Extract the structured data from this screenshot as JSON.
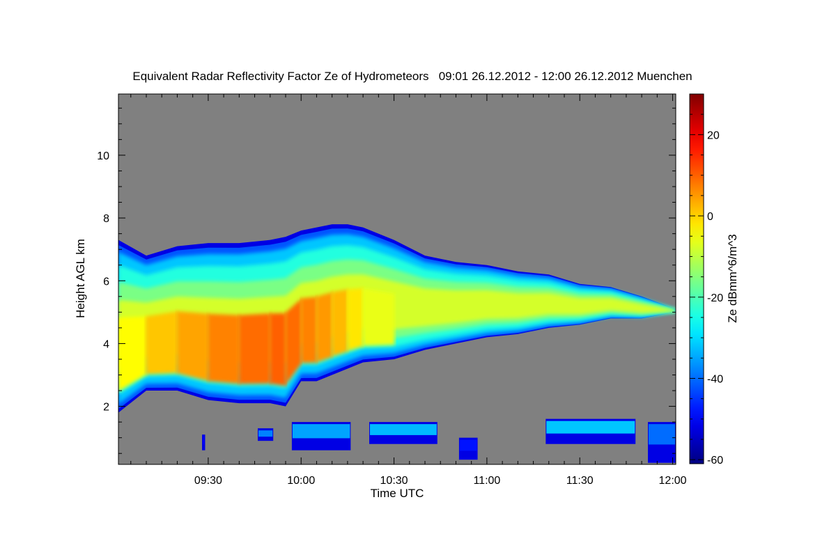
{
  "chart_data": {
    "type": "heatmap",
    "title": "Equivalent Radar Reflectivity Factor Ze of Hydrometeors   09:01 26.12.2012 - 12:00 26.12.2012 Muenchen",
    "xlabel": "Time UTC",
    "ylabel": "Height AGL km",
    "x_tick_labels": [
      "09:30",
      "10:00",
      "10:30",
      "11:00",
      "11:30",
      "12:00"
    ],
    "x_tick_minutes": [
      30,
      60,
      90,
      120,
      150,
      180
    ],
    "xlim_minutes": [
      1,
      181
    ],
    "y_tick_labels": [
      "2",
      "4",
      "6",
      "8",
      "10"
    ],
    "y_ticks": [
      2,
      4,
      6,
      8,
      10
    ],
    "ylim": [
      0.15,
      11.95
    ],
    "colorbar": {
      "label": "Ze dBmm^6/m^3",
      "range": [
        -61,
        30
      ],
      "tick_labels": [
        "-60",
        "-40",
        "-20",
        "0",
        "20"
      ],
      "ticks": [
        -60,
        -40,
        -20,
        0,
        20
      ],
      "colormap": "jet"
    },
    "background_color": "#808080",
    "cloud_layer": {
      "minutes": [
        1,
        10,
        20,
        30,
        40,
        50,
        55,
        60,
        65,
        70,
        75,
        80,
        90,
        100,
        110,
        120,
        130,
        140,
        150,
        160,
        170,
        181
      ],
      "base_km": [
        1.8,
        2.5,
        2.5,
        2.2,
        2.1,
        2.1,
        2.0,
        2.8,
        2.8,
        3.0,
        3.2,
        3.4,
        3.5,
        3.8,
        4.0,
        4.2,
        4.3,
        4.5,
        4.6,
        4.8,
        4.8,
        5.0
      ],
      "top_km": [
        7.3,
        6.8,
        7.1,
        7.2,
        7.2,
        7.3,
        7.4,
        7.6,
        7.7,
        7.8,
        7.8,
        7.7,
        7.3,
        6.8,
        6.6,
        6.5,
        6.3,
        6.2,
        5.9,
        5.8,
        5.5,
        5.1
      ],
      "core_ze_dbz": [
        -8,
        0,
        2,
        6,
        8,
        10,
        10,
        8,
        6,
        4,
        0,
        -4,
        -8,
        -10,
        -12,
        -14,
        -16,
        -16,
        -18,
        -18,
        -20,
        -22
      ]
    },
    "low_echoes": [
      {
        "start_minute": 28,
        "end_minute": 29,
        "base_km": 0.6,
        "top_km": 1.1,
        "ze_dbz": -50
      },
      {
        "start_minute": 46,
        "end_minute": 51,
        "base_km": 0.9,
        "top_km": 1.3,
        "ze_dbz": -38
      },
      {
        "start_minute": 57,
        "end_minute": 76,
        "base_km": 0.6,
        "top_km": 1.5,
        "ze_dbz": -35
      },
      {
        "start_minute": 82,
        "end_minute": 104,
        "base_km": 0.8,
        "top_km": 1.5,
        "ze_dbz": -33
      },
      {
        "start_minute": 111,
        "end_minute": 117,
        "base_km": 0.3,
        "top_km": 1.0,
        "ze_dbz": -48
      },
      {
        "start_minute": 139,
        "end_minute": 168,
        "base_km": 0.8,
        "top_km": 1.6,
        "ze_dbz": -32
      },
      {
        "start_minute": 172,
        "end_minute": 181,
        "base_km": 0.2,
        "top_km": 1.5,
        "ze_dbz": -40
      }
    ]
  }
}
